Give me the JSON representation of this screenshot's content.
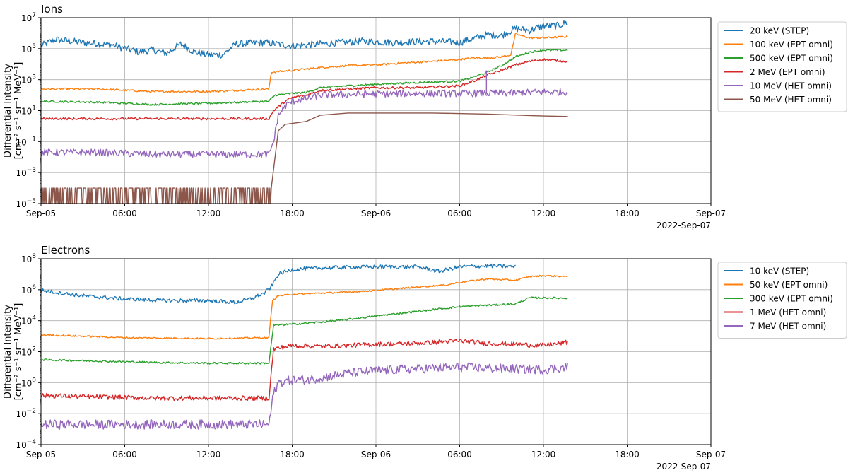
{
  "chart_data": [
    {
      "type": "line",
      "title": "Ions",
      "ylabel": "Differential Intensity",
      "ylabel_units": "[cm⁻² s⁻¹ sr⁻¹ MeV⁻¹]",
      "yscale": "log",
      "ylim": [
        1e-05,
        10000000.0
      ],
      "yticks": [
        {
          "value": 1e-05,
          "base": "10",
          "exp": "−5"
        },
        {
          "value": 0.001,
          "base": "10",
          "exp": "−3"
        },
        {
          "value": 0.1,
          "base": "10",
          "exp": "−1"
        },
        {
          "value": 10.0,
          "base": "10",
          "exp": "1"
        },
        {
          "value": 1000.0,
          "base": "10",
          "exp": "3"
        },
        {
          "value": 100000.0,
          "base": "10",
          "exp": "5"
        },
        {
          "value": 10000000.0,
          "base": "10",
          "exp": "7"
        }
      ],
      "xlim": [
        "2022-09-05 00:00",
        "2022-09-07 00:00"
      ],
      "xticks": [
        {
          "label": "Sep-05",
          "value": "2022-09-05 00:00"
        },
        {
          "label": "06:00",
          "value": "2022-09-05 06:00"
        },
        {
          "label": "12:00",
          "value": "2022-09-05 12:00"
        },
        {
          "label": "18:00",
          "value": "2022-09-05 18:00"
        },
        {
          "label": "Sep-06",
          "value": "2022-09-06 00:00"
        },
        {
          "label": "06:00",
          "value": "2022-09-06 06:00"
        },
        {
          "label": "12:00",
          "value": "2022-09-06 12:00"
        },
        {
          "label": "18:00",
          "value": "2022-09-06 18:00"
        },
        {
          "label": "Sep-07",
          "value": "2022-09-07 00:00"
        }
      ],
      "xaxis_offset_label": "2022-Sep-07",
      "grid": true,
      "legend_position": "outside-right",
      "series": [
        {
          "name": "20 keV (STEP)",
          "color": "#1f77b4",
          "noise": 0.45,
          "x": [
            "2022-09-05 00:00",
            "2022-09-05 01:00",
            "2022-09-05 03:00",
            "2022-09-05 05:00",
            "2022-09-05 07:00",
            "2022-09-05 08:00",
            "2022-09-05 09:00",
            "2022-09-05 10:00",
            "2022-09-05 11:00",
            "2022-09-05 12:00",
            "2022-09-05 13:00",
            "2022-09-05 14:00",
            "2022-09-05 16:00",
            "2022-09-05 18:00",
            "2022-09-05 20:00",
            "2022-09-05 23:00",
            "2022-09-06 01:00",
            "2022-09-06 04:00",
            "2022-09-06 06:00",
            "2022-09-06 08:00",
            "2022-09-06 09:00",
            "2022-09-06 10:00",
            "2022-09-06 11:00",
            "2022-09-06 12:00",
            "2022-09-06 13:00",
            "2022-09-06 13:45"
          ],
          "values": [
            150000,
            400000,
            250000,
            180000,
            60000,
            80000,
            50000,
            200000,
            60000,
            40000,
            40000,
            200000,
            250000,
            150000,
            200000,
            300000,
            250000,
            300000,
            250000,
            800000,
            700000,
            2000000,
            1500000,
            3000000,
            3000000,
            5000000
          ]
        },
        {
          "name": "100 keV (EPT omni)",
          "color": "#ff7f0e",
          "noise": 0.12,
          "x": [
            "2022-09-05 00:00",
            "2022-09-05 04:00",
            "2022-09-05 08:00",
            "2022-09-05 12:00",
            "2022-09-05 16:20",
            "2022-09-05 16:30",
            "2022-09-05 18:00",
            "2022-09-05 20:00",
            "2022-09-05 22:00",
            "2022-09-06 00:00",
            "2022-09-06 02:00",
            "2022-09-06 04:00",
            "2022-09-06 06:00",
            "2022-09-06 07:00",
            "2022-09-06 08:00",
            "2022-09-06 09:00",
            "2022-09-06 09:40",
            "2022-09-06 10:00",
            "2022-09-06 11:00",
            "2022-09-06 12:00",
            "2022-09-06 13:45"
          ],
          "values": [
            250,
            250,
            170,
            170,
            250,
            3000,
            4000,
            6000,
            8000,
            9000,
            12000,
            15000,
            20000,
            25000,
            25000,
            30000,
            40000,
            900000,
            500000,
            500000,
            600000
          ]
        },
        {
          "name": "500 keV (EPT omni)",
          "color": "#2ca02c",
          "noise": 0.12,
          "x": [
            "2022-09-05 00:00",
            "2022-09-05 04:00",
            "2022-09-05 08:00",
            "2022-09-05 12:00",
            "2022-09-05 16:20",
            "2022-09-05 16:45",
            "2022-09-05 18:00",
            "2022-09-05 19:00",
            "2022-09-05 20:00",
            "2022-09-05 22:00",
            "2022-09-06 00:00",
            "2022-09-06 02:00",
            "2022-09-06 04:00",
            "2022-09-06 06:00",
            "2022-09-06 07:00",
            "2022-09-06 08:00",
            "2022-09-06 09:00",
            "2022-09-06 10:00",
            "2022-09-06 11:00",
            "2022-09-06 12:00",
            "2022-09-06 13:45"
          ],
          "values": [
            40,
            35,
            25,
            30,
            40,
            100,
            130,
            150,
            300,
            400,
            500,
            600,
            700,
            800,
            1500,
            3000,
            8000,
            30000,
            60000,
            80000,
            80000
          ]
        },
        {
          "name": "2 MeV (EPT omni)",
          "color": "#d62728",
          "noise": 0.15,
          "x": [
            "2022-09-05 00:00",
            "2022-09-05 04:00",
            "2022-09-05 08:00",
            "2022-09-05 12:00",
            "2022-09-05 16:20",
            "2022-09-05 16:40",
            "2022-09-05 17:30",
            "2022-09-05 18:00",
            "2022-09-05 19:00",
            "2022-09-05 20:00",
            "2022-09-05 22:00",
            "2022-09-06 00:00",
            "2022-09-06 03:00",
            "2022-09-06 06:00",
            "2022-09-06 07:00",
            "2022-09-06 08:00",
            "2022-09-06 09:00",
            "2022-09-06 10:00",
            "2022-09-06 11:00",
            "2022-09-06 12:00",
            "2022-09-06 13:45"
          ],
          "values": [
            3,
            3,
            3,
            3,
            3,
            10,
            40,
            70,
            100,
            200,
            250,
            300,
            300,
            400,
            800,
            2000,
            4000,
            9000,
            15000,
            20000,
            15000
          ]
        },
        {
          "name": "10 MeV (HET omni)",
          "color": "#9467bd",
          "noise": 0.45,
          "x": [
            "2022-09-05 00:00",
            "2022-09-05 04:00",
            "2022-09-05 08:00",
            "2022-09-05 12:00",
            "2022-09-05 16:20",
            "2022-09-05 16:40",
            "2022-09-05 17:00",
            "2022-09-05 17:30",
            "2022-09-05 18:00",
            "2022-09-05 19:00",
            "2022-09-05 20:00",
            "2022-09-05 22:00",
            "2022-09-06 00:00",
            "2022-09-06 03:00",
            "2022-09-06 06:00",
            "2022-09-06 08:00",
            "2022-09-06 10:00",
            "2022-09-06 12:00",
            "2022-09-06 13:45"
          ],
          "values": [
            0.02,
            0.02,
            0.015,
            0.015,
            0.015,
            0.1,
            5,
            20,
            40,
            60,
            100,
            110,
            120,
            130,
            130,
            130,
            140,
            160,
            160
          ]
        },
        {
          "name": "50 MeV (HET omni)",
          "color": "#8c564b",
          "noise": 0,
          "x": [
            "2022-09-05 00:00",
            "2022-09-05 16:30",
            "2022-09-05 17:00",
            "2022-09-05 17:30",
            "2022-09-05 18:00",
            "2022-09-05 19:00",
            "2022-09-05 20:00",
            "2022-09-05 22:00",
            "2022-09-06 00:00",
            "2022-09-06 04:00",
            "2022-09-06 08:00",
            "2022-09-06 12:00",
            "2022-09-06 13:45"
          ],
          "values": [
            0.0001,
            0.0001,
            0.5,
            1.3,
            1.5,
            2,
            5,
            7,
            7,
            7,
            6,
            4.5,
            4.2
          ]
        }
      ]
    },
    {
      "type": "line",
      "title": "Electrons",
      "ylabel": "Differential Intensity",
      "ylabel_units": "[cm⁻² s⁻¹ sr⁻¹ MeV⁻¹]",
      "yscale": "log",
      "ylim": [
        0.0001,
        100000000.0
      ],
      "yticks": [
        {
          "value": 0.0001,
          "base": "10",
          "exp": "−4"
        },
        {
          "value": 0.01,
          "base": "10",
          "exp": "−2"
        },
        {
          "value": 1.0,
          "base": "10",
          "exp": "0"
        },
        {
          "value": 100.0,
          "base": "10",
          "exp": "2"
        },
        {
          "value": 10000.0,
          "base": "10",
          "exp": "4"
        },
        {
          "value": 1000000.0,
          "base": "10",
          "exp": "6"
        },
        {
          "value": 100000000.0,
          "base": "10",
          "exp": "8"
        }
      ],
      "xlim": [
        "2022-09-05 00:00",
        "2022-09-07 00:00"
      ],
      "xticks": [
        {
          "label": "Sep-05",
          "value": "2022-09-05 00:00"
        },
        {
          "label": "06:00",
          "value": "2022-09-05 06:00"
        },
        {
          "label": "12:00",
          "value": "2022-09-05 12:00"
        },
        {
          "label": "18:00",
          "value": "2022-09-05 18:00"
        },
        {
          "label": "Sep-06",
          "value": "2022-09-06 00:00"
        },
        {
          "label": "06:00",
          "value": "2022-09-06 06:00"
        },
        {
          "label": "12:00",
          "value": "2022-09-06 12:00"
        },
        {
          "label": "18:00",
          "value": "2022-09-06 18:00"
        },
        {
          "label": "Sep-07",
          "value": "2022-09-07 00:00"
        }
      ],
      "xaxis_offset_label": "2022-Sep-07",
      "grid": true,
      "legend_position": "outside-right",
      "series": [
        {
          "name": "10 keV (STEP)",
          "color": "#1f77b4",
          "noise": 0.25,
          "x": [
            "2022-09-05 00:00",
            "2022-09-05 03:00",
            "2022-09-05 06:00",
            "2022-09-05 09:00",
            "2022-09-05 12:00",
            "2022-09-05 14:00",
            "2022-09-05 15:00",
            "2022-09-05 16:00",
            "2022-09-05 16:30",
            "2022-09-05 17:00",
            "2022-09-05 18:00",
            "2022-09-05 20:00",
            "2022-09-05 22:00",
            "2022-09-06 00:00",
            "2022-09-06 03:00",
            "2022-09-06 04:30",
            "2022-09-06 06:00",
            "2022-09-06 08:00",
            "2022-09-06 10:00"
          ],
          "values": [
            900000,
            400000,
            250000,
            200000,
            200000,
            150000,
            250000,
            600000,
            1500000,
            10000000,
            20000000,
            25000000,
            28000000,
            30000000,
            30000000,
            15000000,
            30000000,
            35000000,
            30000000
          ]
        },
        {
          "name": "50 keV (EPT omni)",
          "color": "#ff7f0e",
          "noise": 0.1,
          "x": [
            "2022-09-05 00:00",
            "2022-09-05 03:00",
            "2022-09-05 06:00",
            "2022-09-05 12:00",
            "2022-09-05 16:20",
            "2022-09-05 16:35",
            "2022-09-05 17:00",
            "2022-09-05 18:00",
            "2022-09-05 20:00",
            "2022-09-05 22:00",
            "2022-09-06 00:00",
            "2022-09-06 03:00",
            "2022-09-06 05:00",
            "2022-09-06 06:00",
            "2022-09-06 08:00",
            "2022-09-06 10:00",
            "2022-09-06 11:00",
            "2022-09-06 12:00",
            "2022-09-06 13:45"
          ],
          "values": [
            1200,
            1000,
            800,
            700,
            800,
            200000,
            400000,
            500000,
            600000,
            700000,
            900000,
            1500000,
            2000000,
            3000000,
            5000000,
            4000000,
            7000000,
            8000000,
            7000000
          ]
        },
        {
          "name": "300 keV (EPT omni)",
          "color": "#2ca02c",
          "noise": 0.12,
          "x": [
            "2022-09-05 00:00",
            "2022-09-05 04:00",
            "2022-09-05 08:00",
            "2022-09-05 12:00",
            "2022-09-05 16:20",
            "2022-09-05 16:40",
            "2022-09-05 18:00",
            "2022-09-05 20:00",
            "2022-09-05 22:00",
            "2022-09-06 00:00",
            "2022-09-06 03:00",
            "2022-09-06 06:00",
            "2022-09-06 08:00",
            "2022-09-06 10:00",
            "2022-09-06 11:00",
            "2022-09-06 12:00",
            "2022-09-06 13:45"
          ],
          "values": [
            30,
            25,
            20,
            18,
            18,
            5000,
            6000,
            8000,
            12000,
            20000,
            40000,
            80000,
            100000,
            120000,
            300000,
            300000,
            280000
          ]
        },
        {
          "name": "1 MeV (HET omni)",
          "color": "#d62728",
          "noise": 0.3,
          "x": [
            "2022-09-05 00:00",
            "2022-09-05 04:00",
            "2022-09-05 08:00",
            "2022-09-05 12:00",
            "2022-09-05 16:20",
            "2022-09-05 16:40",
            "2022-09-05 18:00",
            "2022-09-05 20:00",
            "2022-09-05 22:00",
            "2022-09-06 00:00",
            "2022-09-06 03:00",
            "2022-09-06 05:00",
            "2022-09-06 06:00",
            "2022-09-06 08:00",
            "2022-09-06 10:00",
            "2022-09-06 12:00",
            "2022-09-06 13:45"
          ],
          "values": [
            0.15,
            0.12,
            0.1,
            0.1,
            0.1,
            150,
            250,
            220,
            250,
            300,
            350,
            450,
            500,
            350,
            300,
            250,
            400
          ]
        },
        {
          "name": "7 MeV (HET omni)",
          "color": "#9467bd",
          "noise": 0.6,
          "x": [
            "2022-09-05 00:00",
            "2022-09-05 04:00",
            "2022-09-05 08:00",
            "2022-09-05 12:00",
            "2022-09-05 16:20",
            "2022-09-05 16:40",
            "2022-09-05 17:00",
            "2022-09-05 18:00",
            "2022-09-05 19:00",
            "2022-09-05 20:00",
            "2022-09-05 22:00",
            "2022-09-06 00:00",
            "2022-09-06 03:00",
            "2022-09-06 06:00",
            "2022-09-06 09:00",
            "2022-09-06 12:00",
            "2022-09-06 13:45"
          ],
          "values": [
            0.002,
            0.002,
            0.002,
            0.002,
            0.002,
            0.2,
            1,
            1.5,
            1.5,
            2,
            4,
            6,
            8,
            10,
            8,
            7,
            10
          ]
        }
      ]
    }
  ]
}
